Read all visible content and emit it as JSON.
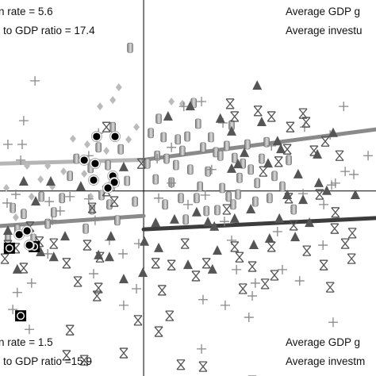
{
  "chart_data": {
    "type": "scatter",
    "title": "",
    "xlabel": "",
    "ylabel": "",
    "xlim": [
      0,
      100
    ],
    "ylim": [
      0,
      100
    ],
    "axes_cross": {
      "x": 38.2,
      "y": 49.2
    },
    "annotations": [
      {
        "text": "n rate = 5.6",
        "corner": "top-left-line1"
      },
      {
        "text": "to GDP ratio = 17.4",
        "corner": "top-left-line2"
      },
      {
        "text": "Average GDP g",
        "corner": "top-right-line1"
      },
      {
        "text": "Average investu",
        "corner": "top-right-line2"
      },
      {
        "text": "n rate = 1.5",
        "corner": "bottom-left-line1"
      },
      {
        "text": "to GDP ratio =15.9",
        "corner": "bottom-left-line2"
      },
      {
        "text": "Average GDP g",
        "corner": "bottom-right-line1"
      },
      {
        "text": "Average investm",
        "corner": "bottom-right-line2"
      }
    ],
    "colors": {
      "cylinder_dark": "#8a8a8a",
      "cylinder_light": "#d4d4d4",
      "triangle": "#555555",
      "diamond": "#bbbbbb",
      "plus": "#888888",
      "star": "#555555",
      "circle": "#000000",
      "square": "#000000",
      "fit_light": "#b5b5b5",
      "fit_mid": "#8a8a8a",
      "fit_dark": "#3c3c3c"
    },
    "fit_lines": [
      {
        "color": "fit_light",
        "x": [
          0,
          38.2
        ],
        "y": [
          56.5,
          57.5
        ],
        "width": 5
      },
      {
        "color": "fit_mid",
        "x": [
          38.2,
          100
        ],
        "y": [
          57.5,
          65.6
        ],
        "width": 5
      },
      {
        "color": "fit_mid",
        "x": [
          0,
          38.2
        ],
        "y": [
          39.9,
          42.6
        ],
        "width": 5
      },
      {
        "color": "fit_dark",
        "x": [
          38.2,
          100
        ],
        "y": [
          39.0,
          42.0
        ],
        "width": 5
      }
    ],
    "series": [
      {
        "marker": "cylinder",
        "points": [
          [
            34.6,
            87.3
          ],
          [
            42.2,
            68.4
          ],
          [
            43.5,
            63.5
          ],
          [
            40.1,
            64.6
          ],
          [
            44.3,
            57.8
          ],
          [
            47.3,
            62.9
          ],
          [
            49.8,
            63.7
          ],
          [
            51.5,
            72.6
          ],
          [
            54.0,
            60.8
          ],
          [
            55.3,
            54.4
          ],
          [
            56.1,
            63.5
          ],
          [
            53.2,
            50.4
          ],
          [
            57.4,
            59.5
          ],
          [
            58.6,
            58.6
          ],
          [
            60.3,
            61.2
          ],
          [
            61.6,
            66.7
          ],
          [
            62.4,
            58.0
          ],
          [
            63.7,
            52.7
          ],
          [
            52.3,
            47.3
          ],
          [
            54.9,
            43.9
          ],
          [
            57.8,
            44.1
          ],
          [
            59.1,
            50.0
          ],
          [
            60.8,
            47.7
          ],
          [
            62.0,
            45.6
          ],
          [
            63.3,
            48.3
          ],
          [
            64.6,
            56.5
          ],
          [
            65.8,
            61.6
          ],
          [
            66.7,
            54.9
          ],
          [
            68.4,
            51.3
          ],
          [
            69.6,
            57.8
          ],
          [
            70.9,
            62.2
          ],
          [
            67.9,
            46.4
          ],
          [
            71.7,
            47.3
          ],
          [
            73.0,
            53.2
          ],
          [
            75.1,
            50.4
          ],
          [
            76.8,
            57.4
          ],
          [
            78.1,
            44.3
          ],
          [
            46.8,
            56.1
          ],
          [
            45.6,
            51.5
          ],
          [
            48.1,
            47.3
          ],
          [
            49.4,
            41.6
          ],
          [
            43.9,
            45.6
          ],
          [
            41.4,
            52.3
          ],
          [
            39.2,
            56.5
          ],
          [
            32.1,
            60.3
          ],
          [
            30.0,
            66.2
          ],
          [
            28.7,
            56.1
          ],
          [
            26.2,
            60.8
          ],
          [
            24.1,
            55.3
          ],
          [
            20.3,
            57.8
          ],
          [
            18.6,
            53.2
          ],
          [
            16.5,
            47.3
          ],
          [
            14.3,
            43.5
          ],
          [
            12.7,
            40.5
          ],
          [
            24.5,
            44.3
          ],
          [
            27.0,
            48.1
          ],
          [
            29.1,
            45.6
          ],
          [
            33.8,
            51.9
          ],
          [
            35.9,
            46.4
          ],
          [
            31.2,
            41.4
          ],
          [
            22.8,
            39.2
          ],
          [
            11.0,
            47.7
          ],
          [
            6.3,
            43.1
          ],
          [
            4.6,
            39.0
          ],
          [
            2.1,
            37.1
          ],
          [
            8.9,
            36.5
          ],
          [
            3.4,
            44.7
          ],
          [
            50.6,
            54.9
          ],
          [
            52.7,
            67.1
          ],
          [
            48.5,
            59.9
          ],
          [
            41.8,
            58.6
          ]
        ]
      },
      {
        "marker": "triangle",
        "points": [
          [
            68.4,
            77.2
          ],
          [
            50.6,
            71.7
          ],
          [
            44.7,
            69.0
          ],
          [
            58.6,
            68.4
          ],
          [
            61.6,
            65.0
          ],
          [
            69.6,
            67.5
          ],
          [
            73.8,
            62.4
          ],
          [
            74.7,
            60.3
          ],
          [
            84.4,
            58.9
          ],
          [
            79.3,
            53.6
          ],
          [
            80.6,
            46.8
          ],
          [
            84.8,
            51.3
          ],
          [
            78.5,
            36.9
          ],
          [
            74.3,
            41.8
          ],
          [
            71.7,
            36.5
          ],
          [
            67.5,
            34.8
          ],
          [
            62.4,
            41.8
          ],
          [
            57.0,
            39.7
          ],
          [
            57.8,
            33.3
          ],
          [
            56.5,
            28.3
          ],
          [
            50.0,
            29.5
          ],
          [
            42.2,
            34.0
          ],
          [
            38.4,
            35.7
          ],
          [
            38.0,
            27.4
          ],
          [
            32.9,
            25.7
          ],
          [
            29.1,
            31.6
          ],
          [
            26.2,
            32.1
          ],
          [
            29.5,
            37.1
          ],
          [
            17.3,
            37.1
          ],
          [
            14.3,
            31.6
          ],
          [
            10.8,
            32.9
          ],
          [
            4.6,
            28.3
          ],
          [
            2.1,
            38.6
          ],
          [
            9.5,
            46.4
          ],
          [
            13.5,
            51.7
          ],
          [
            21.5,
            50.4
          ],
          [
            29.5,
            51.3
          ],
          [
            32.9,
            55.5
          ],
          [
            41.4,
            40.7
          ],
          [
            46.4,
            41.6
          ],
          [
            52.3,
            43.5
          ],
          [
            55.3,
            40.9
          ],
          [
            63.3,
            56.3
          ],
          [
            66.7,
            44.3
          ],
          [
            71.3,
            56.5
          ],
          [
            76.4,
            48.1
          ],
          [
            82.3,
            40.7
          ],
          [
            88.6,
            64.6
          ],
          [
            86.9,
            49.2
          ],
          [
            94.5,
            48.1
          ],
          [
            6.3,
            51.7
          ],
          [
            61.6,
            55.1
          ],
          [
            65.0,
            59.3
          ]
        ]
      },
      {
        "marker": "diamond",
        "points": [
          [
            30.0,
            73.4
          ],
          [
            26.6,
            71.7
          ],
          [
            36.3,
            66.2
          ],
          [
            34.2,
            62.9
          ],
          [
            28.3,
            59.9
          ],
          [
            23.2,
            61.6
          ],
          [
            19.4,
            63.1
          ],
          [
            12.7,
            55.9
          ],
          [
            7.2,
            55.9
          ],
          [
            1.7,
            50.0
          ],
          [
            16.9,
            54.4
          ],
          [
            10.8,
            52.3
          ],
          [
            8.4,
            47.7
          ],
          [
            48.5,
            72.4
          ],
          [
            31.6,
            76.8
          ],
          [
            13.9,
            50.4
          ],
          [
            45.6,
            73.0
          ],
          [
            22.4,
            53.8
          ],
          [
            4.2,
            42.2
          ],
          [
            24.1,
            47.7
          ]
        ]
      },
      {
        "marker": "plus",
        "points": [
          [
            9.3,
            78.5
          ],
          [
            6.3,
            67.9
          ],
          [
            5.5,
            57.4
          ],
          [
            5.9,
            61.6
          ],
          [
            4.2,
            48.3
          ],
          [
            1.9,
            46.0
          ],
          [
            13.9,
            41.4
          ],
          [
            16.0,
            43.9
          ],
          [
            18.6,
            47.7
          ],
          [
            23.6,
            47.1
          ],
          [
            23.6,
            58.6
          ],
          [
            30.4,
            50.6
          ],
          [
            25.3,
            41.4
          ],
          [
            29.1,
            36.1
          ],
          [
            32.7,
            32.5
          ],
          [
            24.9,
            27.2
          ],
          [
            36.3,
            23.2
          ],
          [
            32.9,
            18.8
          ],
          [
            12.7,
            32.5
          ],
          [
            4.6,
            22.2
          ],
          [
            8.4,
            24.7
          ],
          [
            41.8,
            57.8
          ],
          [
            42.2,
            47.3
          ],
          [
            45.6,
            51.3
          ],
          [
            48.9,
            71.7
          ],
          [
            53.6,
            73.0
          ],
          [
            56.3,
            54.9
          ],
          [
            59.3,
            67.3
          ],
          [
            61.6,
            36.1
          ],
          [
            62.9,
            28.3
          ],
          [
            67.9,
            24.7
          ],
          [
            67.1,
            21.3
          ],
          [
            59.9,
            18.8
          ],
          [
            54.0,
            20.3
          ],
          [
            73.8,
            38.4
          ],
          [
            75.1,
            28.3
          ],
          [
            79.7,
            25.3
          ],
          [
            86.1,
            45.6
          ],
          [
            89.2,
            51.3
          ],
          [
            91.4,
            71.7
          ],
          [
            87.8,
            64.1
          ],
          [
            91.8,
            54.4
          ],
          [
            72.2,
            61.2
          ],
          [
            81.0,
            66.2
          ],
          [
            85.9,
            34.8
          ],
          [
            88.6,
            14.3
          ],
          [
            54.6,
            48.1
          ],
          [
            45.6,
            60.8
          ],
          [
            50.0,
            45.6
          ],
          [
            26.2,
            64.6
          ],
          [
            36.9,
            35.2
          ],
          [
            13.1,
            46.4
          ],
          [
            53.6,
            7.2
          ],
          [
            80.6,
            48.5
          ],
          [
            88.2,
            50.8
          ],
          [
            97.9,
            58.6
          ],
          [
            94.1,
            53.6
          ],
          [
            3.4,
            17.7
          ],
          [
            7.8,
            12.4
          ],
          [
            2.1,
            61.6
          ],
          [
            66.2,
            15.6
          ],
          [
            59.7,
            41.1
          ],
          [
            23.2,
            3.8
          ]
        ]
      },
      {
        "marker": "star",
        "points": [
          [
            61.2,
            72.4
          ],
          [
            62.4,
            69.0
          ],
          [
            68.6,
            70.5
          ],
          [
            72.2,
            69.0
          ],
          [
            77.2,
            66.2
          ],
          [
            81.4,
            67.5
          ],
          [
            80.6,
            69.8
          ],
          [
            86.5,
            62.4
          ],
          [
            90.3,
            58.6
          ],
          [
            83.5,
            59.9
          ],
          [
            76.8,
            47.3
          ],
          [
            78.1,
            40.1
          ],
          [
            85.0,
            48.3
          ],
          [
            89.2,
            43.5
          ],
          [
            89.0,
            39.2
          ],
          [
            93.7,
            38.0
          ],
          [
            91.8,
            35.2
          ],
          [
            81.6,
            33.3
          ],
          [
            86.1,
            29.5
          ],
          [
            73.0,
            26.8
          ],
          [
            72.2,
            34.4
          ],
          [
            70.5,
            24.5
          ],
          [
            67.1,
            29.1
          ],
          [
            63.7,
            31.6
          ],
          [
            62.4,
            34.4
          ],
          [
            64.6,
            23.2
          ],
          [
            52.1,
            26.6
          ],
          [
            54.9,
            30.0
          ],
          [
            49.2,
            35.2
          ],
          [
            45.6,
            29.5
          ],
          [
            41.4,
            30.0
          ],
          [
            43.1,
            22.8
          ],
          [
            45.1,
            16.0
          ],
          [
            42.2,
            11.8
          ],
          [
            32.9,
            6.1
          ],
          [
            26.2,
            23.4
          ],
          [
            26.6,
            31.6
          ],
          [
            24.5,
            44.7
          ],
          [
            28.3,
            49.2
          ],
          [
            30.4,
            46.4
          ],
          [
            25.8,
            21.3
          ],
          [
            20.7,
            25.1
          ],
          [
            17.7,
            30.0
          ],
          [
            14.3,
            35.2
          ],
          [
            10.5,
            35.7
          ],
          [
            8.0,
            39.7
          ],
          [
            1.3,
            31.2
          ],
          [
            2.1,
            34.8
          ],
          [
            4.2,
            34.0
          ],
          [
            6.3,
            28.7
          ],
          [
            54.0,
            2.5
          ],
          [
            67.1,
            -1.3
          ],
          [
            36.7,
            14.8
          ],
          [
            18.6,
            12.2
          ],
          [
            17.7,
            5.5
          ],
          [
            93.5,
            31.2
          ],
          [
            37.6,
            56.5
          ],
          [
            28.3,
            66.2
          ],
          [
            23.2,
            34.8
          ],
          [
            87.8,
            23.6
          ],
          [
            60.3,
            44.3
          ],
          [
            70.0,
            54.4
          ],
          [
            74.1,
            57.0
          ],
          [
            76.4,
            60.3
          ],
          [
            22.4,
            4.2
          ],
          [
            48.1,
            3.0
          ]
        ]
      },
      {
        "marker": "circle",
        "points": [
          [
            25.7,
            63.7
          ],
          [
            30.6,
            63.7
          ],
          [
            22.4,
            57.4
          ],
          [
            25.3,
            56.5
          ],
          [
            30.0,
            53.2
          ],
          [
            24.9,
            52.1
          ],
          [
            30.4,
            51.5
          ],
          [
            28.7,
            50.0
          ],
          [
            5.1,
            37.6
          ],
          [
            7.2,
            38.6
          ],
          [
            7.8,
            34.8
          ]
        ]
      },
      {
        "marker": "square",
        "points": [
          [
            2.5,
            34.0
          ],
          [
            9.1,
            34.4
          ],
          [
            5.5,
            16.0
          ]
        ]
      }
    ]
  }
}
